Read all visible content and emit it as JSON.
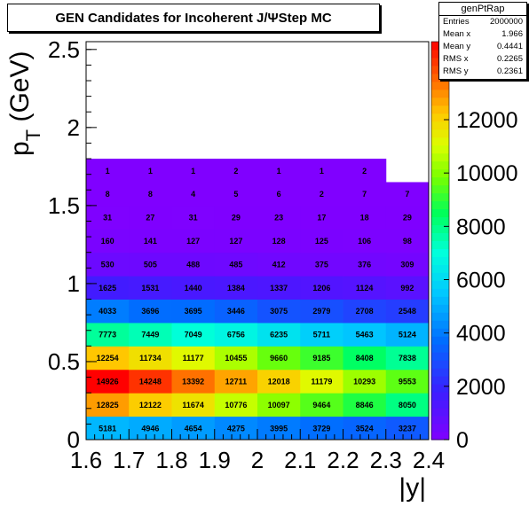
{
  "title": "GEN Candidates for Incoherent J/ΨStep MC",
  "stats": {
    "name": "genPtRap",
    "rows": [
      {
        "label": "Entries",
        "value": "2000000"
      },
      {
        "label": "Mean x",
        "value": "1.966"
      },
      {
        "label": "Mean y",
        "value": "0.4441"
      },
      {
        "label": "RMS x",
        "value": "0.2265"
      },
      {
        "label": "RMS y",
        "value": "0.2361"
      }
    ]
  },
  "chart_data": {
    "type": "heatmap",
    "title": "GEN Candidates for Incoherent J/ΨStep MC",
    "xlabel": "|y|",
    "ylabel": "p_T (GeV)",
    "xlim": [
      1.6,
      2.4
    ],
    "ylim": [
      0,
      2.55
    ],
    "x_bin_edges": [
      1.6,
      1.7,
      1.8,
      1.9,
      2.0,
      2.1,
      2.2,
      2.3,
      2.4
    ],
    "y_bin_edges": [
      0,
      0.1,
      0.2,
      0.3,
      0.4,
      0.5,
      0.6,
      0.7,
      0.8,
      0.9,
      1.0,
      1.1,
      1.2,
      1.3,
      1.4,
      1.5,
      1.6,
      1.7,
      1.8
    ],
    "x_ticks": [
      "1.6",
      "1.7",
      "1.8",
      "1.9",
      "2",
      "2.1",
      "2.2",
      "2.3",
      "2.4"
    ],
    "y_ticks": [
      "0",
      "0.5",
      "1",
      "1.5",
      "2",
      "2.5"
    ],
    "colorbar_ticks": [
      "0",
      "2000",
      "4000",
      "6000",
      "8000",
      "10000",
      "12000"
    ],
    "z_max": 14926,
    "values": [
      [
        5181,
        4946,
        4654,
        4275,
        3995,
        3729,
        3524,
        3237
      ],
      [
        12825,
        12122,
        11674,
        10776,
        10097,
        9464,
        8846,
        8050
      ],
      [
        14926,
        14248,
        13392,
        12711,
        12018,
        11179,
        10293,
        9553
      ],
      [
        12254,
        11734,
        11177,
        10455,
        9660,
        9185,
        8408,
        7838
      ],
      [
        7773,
        7449,
        7049,
        6756,
        6235,
        5711,
        5463,
        5124
      ],
      [
        4033,
        3696,
        3695,
        3446,
        3075,
        2979,
        2708,
        2548
      ],
      [
        1625,
        1531,
        1440,
        1384,
        1337,
        1206,
        1124,
        992
      ],
      [
        530,
        505,
        488,
        485,
        412,
        375,
        376,
        309
      ],
      [
        160,
        141,
        127,
        127,
        128,
        125,
        106,
        98
      ],
      [
        31,
        27,
        31,
        29,
        23,
        17,
        18,
        29
      ],
      [
        8,
        8,
        4,
        5,
        6,
        2,
        7,
        7
      ],
      [
        1,
        1,
        1,
        2,
        1,
        1,
        2,
        null
      ]
    ],
    "row_y_ranges": [
      [
        0.0,
        0.1
      ],
      [
        0.1,
        0.2
      ],
      [
        0.2,
        0.3
      ],
      [
        0.3,
        0.4
      ],
      [
        0.4,
        0.5
      ],
      [
        0.5,
        0.6
      ],
      [
        0.6,
        0.7
      ],
      [
        0.7,
        0.8
      ],
      [
        0.8,
        0.9
      ],
      [
        0.9,
        1.0
      ],
      [
        1.0,
        1.1
      ],
      [
        1.1,
        1.2
      ]
    ]
  }
}
